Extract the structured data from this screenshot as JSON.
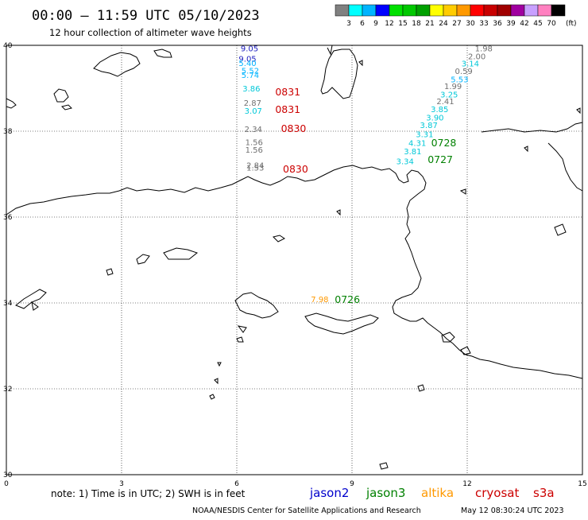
{
  "title": "00:00 – 11:59 UTC 05/10/2023",
  "subtitle": "12 hour collection of altimeter wave heights",
  "colorbar": {
    "colors": [
      "#808080",
      "#00ffff",
      "#00b4ff",
      "#0000ff",
      "#00e000",
      "#00c800",
      "#00a000",
      "#ffff00",
      "#ffcc00",
      "#ff9900",
      "#ff0000",
      "#c80000",
      "#a00000",
      "#a000a0",
      "#c8a0ff",
      "#ff80c0",
      "#000000"
    ],
    "ticks": [
      "3",
      "6",
      "9",
      "12",
      "15",
      "18",
      "21",
      "24",
      "27",
      "30",
      "33",
      "36",
      "39",
      "42",
      "45",
      "70"
    ],
    "unit": "(ft)"
  },
  "axes": {
    "x_ticks": [
      "0",
      "3",
      "6",
      "9",
      "12",
      "15"
    ],
    "y_ticks": [
      "40",
      "38",
      "36",
      "34",
      "32",
      "30"
    ]
  },
  "sat_colors": {
    "jason2": "#0000cc",
    "jason3": "#008000",
    "altika": "#ff9900",
    "cryosat": "#cc0000",
    "s3a": "#cc0000",
    "gray": "#707070",
    "cyan": "#00c8d8"
  },
  "observations": [
    {
      "lon": 6.1,
      "lat": 39.86,
      "v": "9.05",
      "c": "#2020c0"
    },
    {
      "lon": 6.05,
      "lat": 39.62,
      "v": "9.05",
      "c": "#2020c0"
    },
    {
      "lon": 6.05,
      "lat": 39.52,
      "v": "5.40",
      "c": "#00b4ff"
    },
    {
      "lon": 6.12,
      "lat": 39.34,
      "v": "5.52",
      "c": "#00b4ff"
    },
    {
      "lon": 6.12,
      "lat": 39.24,
      "v": "5.74",
      "c": "#00b4ff"
    },
    {
      "lon": 6.15,
      "lat": 38.93,
      "v": "3.86",
      "c": "#00c8d8"
    },
    {
      "lon": 6.18,
      "lat": 38.59,
      "v": "2.87",
      "c": "#707070"
    },
    {
      "lon": 6.2,
      "lat": 38.41,
      "v": "3.07",
      "c": "#00c8d8"
    },
    {
      "lon": 6.2,
      "lat": 37.98,
      "v": "2.34",
      "c": "#707070"
    },
    {
      "lon": 6.22,
      "lat": 37.68,
      "v": "1.56",
      "c": "#707070"
    },
    {
      "lon": 6.22,
      "lat": 37.5,
      "v": "1.56",
      "c": "#707070"
    },
    {
      "lon": 6.25,
      "lat": 37.14,
      "v": "2.84",
      "c": "#707070"
    },
    {
      "lon": 6.25,
      "lat": 37.08,
      "v": "1.53",
      "c": "#707070"
    },
    {
      "lon": 12.2,
      "lat": 39.86,
      "v": "1.98",
      "c": "#707070"
    },
    {
      "lon": 12.02,
      "lat": 39.68,
      "v": "2.00",
      "c": "#707070"
    },
    {
      "lon": 11.85,
      "lat": 39.51,
      "v": "3.14",
      "c": "#00c8d8"
    },
    {
      "lon": 11.68,
      "lat": 39.33,
      "v": "0.59",
      "c": "#707070"
    },
    {
      "lon": 11.57,
      "lat": 39.14,
      "v": "5.53",
      "c": "#00b4ff"
    },
    {
      "lon": 11.4,
      "lat": 38.98,
      "v": "1.99",
      "c": "#707070"
    },
    {
      "lon": 11.3,
      "lat": 38.79,
      "v": "3.25",
      "c": "#00c8d8"
    },
    {
      "lon": 11.2,
      "lat": 38.63,
      "v": "2.41",
      "c": "#707070"
    },
    {
      "lon": 11.05,
      "lat": 38.44,
      "v": "3.85",
      "c": "#00c8d8"
    },
    {
      "lon": 10.93,
      "lat": 38.25,
      "v": "3.90",
      "c": "#00c8d8"
    },
    {
      "lon": 10.77,
      "lat": 38.07,
      "v": "3.87",
      "c": "#00c8d8"
    },
    {
      "lon": 10.66,
      "lat": 37.86,
      "v": "3.31",
      "c": "#00c8d8"
    },
    {
      "lon": 10.47,
      "lat": 37.66,
      "v": "4.31",
      "c": "#00c8d8"
    },
    {
      "lon": 10.35,
      "lat": 37.46,
      "v": "3.81",
      "c": "#00c8d8"
    },
    {
      "lon": 10.15,
      "lat": 37.23,
      "v": "3.34",
      "c": "#00c8d8"
    },
    {
      "lon": 7.93,
      "lat": 34.02,
      "v": "7.98",
      "c": "#ff9900"
    }
  ],
  "passes": [
    {
      "lon": 7.0,
      "lat": 38.83,
      "v": "0831",
      "c": "#cc0000"
    },
    {
      "lon": 7.0,
      "lat": 38.43,
      "v": "0831",
      "c": "#cc0000"
    },
    {
      "lon": 7.15,
      "lat": 37.98,
      "v": "0830",
      "c": "#cc0000"
    },
    {
      "lon": 7.2,
      "lat": 37.04,
      "v": "0830",
      "c": "#cc0000"
    },
    {
      "lon": 11.06,
      "lat": 37.65,
      "v": "0728",
      "c": "#008000"
    },
    {
      "lon": 10.97,
      "lat": 37.26,
      "v": "0727",
      "c": "#008000"
    },
    {
      "lon": 8.55,
      "lat": 34.0,
      "v": "0726",
      "c": "#008000"
    }
  ],
  "footer": {
    "note": "note:  1) Time is in UTC;  2) SWH is in feet",
    "legend": [
      {
        "label": "jason2",
        "color": "#0000cc"
      },
      {
        "label": "jason3",
        "color": "#008000"
      },
      {
        "label": "altika",
        "color": "#ff9900"
      },
      {
        "label": "cryosat",
        "color": "#cc0000"
      },
      {
        "label": "s3a",
        "color": "#cc0000"
      }
    ],
    "credit": "NOAA/NESDIS Center for Satellite Applications and Research",
    "timestamp": "May 12 08:30:24 UTC 2023"
  }
}
